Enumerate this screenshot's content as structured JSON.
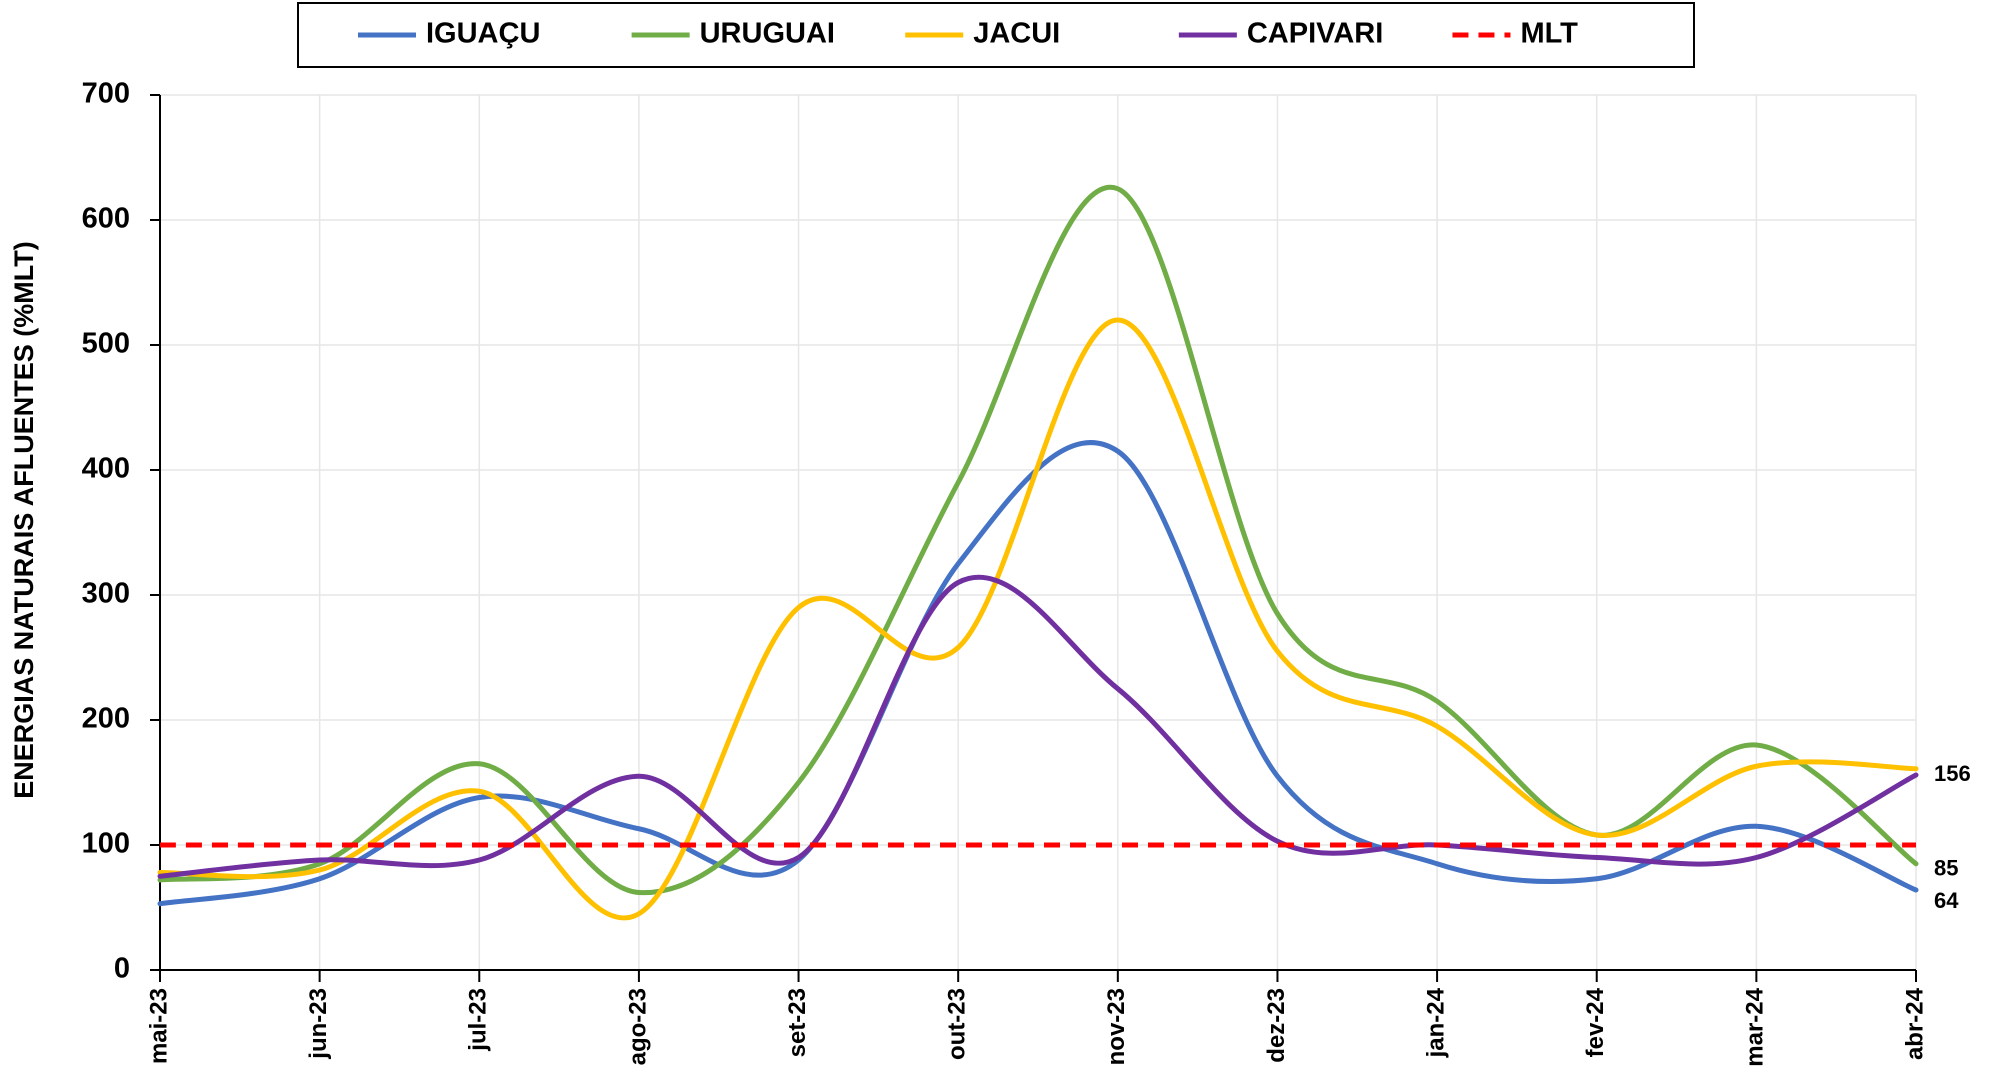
{
  "chart_data": {
    "type": "line",
    "smooth": true,
    "y_label": "ENERGIAS NATURAIS AFLUENTES (%MLT)",
    "categories": [
      "mai-23",
      "jun-23",
      "jul-23",
      "ago-23",
      "set-23",
      "out-23",
      "nov-23",
      "dez-23",
      "jan-24",
      "fev-24",
      "mar-24",
      "abr-24"
    ],
    "ylim": [
      0,
      700
    ],
    "yticks": [
      0,
      100,
      200,
      300,
      400,
      500,
      600,
      700
    ],
    "grid": true,
    "series": [
      {
        "name": "IGUAÇU",
        "color": "#4472c4",
        "end_label": true,
        "values": [
          53,
          73,
          138,
          113,
          88,
          325,
          415,
          155,
          85,
          73,
          115,
          64
        ]
      },
      {
        "name": "URUGUAI",
        "color": "#70ad47",
        "end_label": true,
        "values": [
          72,
          85,
          165,
          62,
          150,
          390,
          625,
          285,
          215,
          108,
          180,
          85
        ]
      },
      {
        "name": "JACUI",
        "color": "#ffc000",
        "end_label": false,
        "values": [
          78,
          80,
          143,
          45,
          290,
          258,
          520,
          255,
          195,
          108,
          163,
          161
        ]
      },
      {
        "name": "CAPIVARI",
        "color": "#7030a0",
        "end_label": true,
        "values": [
          75,
          88,
          88,
          155,
          90,
          310,
          225,
          103,
          100,
          90,
          90,
          156
        ]
      },
      {
        "name": "MLT",
        "color": "#ff0000",
        "dashed": true,
        "end_label": false,
        "values": [
          100,
          100,
          100,
          100,
          100,
          100,
          100,
          100,
          100,
          100,
          100,
          100
        ]
      }
    ]
  }
}
